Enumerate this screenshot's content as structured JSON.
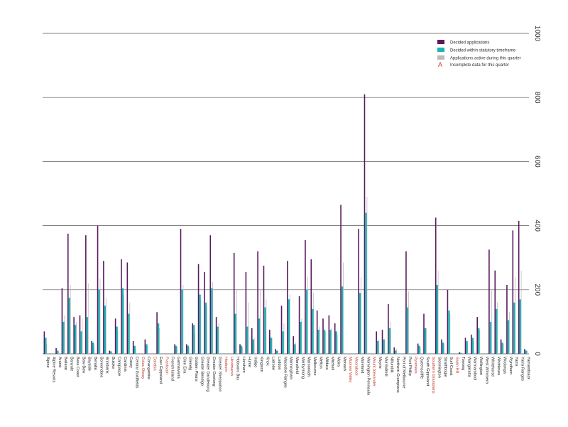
{
  "chart_data": {
    "type": "bar",
    "title": "",
    "xlabel": "",
    "ylabel": "",
    "ylim": [
      0,
      1000
    ],
    "yticks": [
      0,
      200,
      400,
      600,
      800,
      1000
    ],
    "grid": true,
    "legend_position": "top-right",
    "legend": {
      "decided": "Decided applications",
      "within": "Decided within statutory timeframe",
      "active": "Applications active during this quarter",
      "incomplete_marker": "A",
      "incomplete": "Incomplete data for this quarter"
    },
    "colors": {
      "decided": "#5a1a5e",
      "within": "#1fb3b3",
      "active": "#bbbbbb",
      "incomplete": "#c0392b",
      "grid": "#555555",
      "background": "#ffffff"
    },
    "categories": [
      "Alpine",
      "Alpine Resorts",
      "Ararat",
      "Ballarat",
      "Banyule",
      "Bass Coast",
      "Baw Baw",
      "Bayside",
      "Benalla",
      "Boroondara",
      "Brimbank",
      "Buloke",
      "Campaspe",
      "Cardinia",
      "Casey",
      "Central Goldfields",
      "Colac Otway",
      "Corangamite",
      "Darebin",
      "East Gippsland",
      "Frankston",
      "French Island",
      "Gannawarra",
      "Glen Eira",
      "Glenelg",
      "Golden Plains",
      "Greater Bendigo",
      "Greater Dandenong",
      "Greater Geelong",
      "Greater Shepparton",
      "Hepburn",
      "Hindmarsh",
      "Hobsons Bay",
      "Horsham",
      "Hume",
      "Indigo",
      "Kingston",
      "Knox",
      "Latrobe",
      "Loddon",
      "Macedon Ranges",
      "Manningham",
      "Mansfield",
      "Maribyrnong",
      "Maroondah",
      "Melbourne",
      "Melton",
      "Mildura",
      "Mitchell",
      "Moira",
      "Monash",
      "Moonee Valley",
      "Moorabool",
      "Moreland",
      "Mornington Peninsula",
      "Mount Alexander",
      "Moyne",
      "Murrindindi",
      "Nillumbik",
      "Northern Grampians",
      "Port of Melbourne",
      "Port Phillip",
      "Pyrenees",
      "Queenscliffe",
      "South Gippsland",
      "Southern Grampians",
      "Stonnington",
      "Strathbogie",
      "Surf Coast",
      "Swan Hill",
      "Towong",
      "Wangaratta",
      "Warrnambool",
      "Wellington",
      "West Wimmera",
      "Whitehorse",
      "Whittlesea",
      "Wodonga",
      "Wyndham",
      "Yarra",
      "Yarra Ranges",
      "Yarriambiack"
    ],
    "incomplete": [
      false,
      false,
      false,
      false,
      false,
      false,
      false,
      false,
      false,
      false,
      false,
      false,
      false,
      false,
      false,
      false,
      true,
      false,
      true,
      false,
      true,
      false,
      false,
      false,
      false,
      false,
      false,
      false,
      false,
      false,
      true,
      true,
      false,
      false,
      false,
      false,
      false,
      false,
      false,
      false,
      false,
      false,
      false,
      false,
      false,
      false,
      false,
      false,
      false,
      false,
      false,
      true,
      true,
      false,
      false,
      true,
      false,
      false,
      false,
      false,
      false,
      false,
      true,
      false,
      false,
      true,
      false,
      false,
      false,
      true,
      false,
      false,
      false,
      false,
      false,
      false,
      false,
      false,
      false,
      false,
      false,
      false
    ],
    "series": [
      {
        "name": "Decided applications",
        "values": [
          70,
          0,
          18,
          205,
          375,
          115,
          120,
          370,
          40,
          400,
          290,
          10,
          110,
          295,
          285,
          40,
          0,
          45,
          0,
          130,
          0,
          0,
          30,
          390,
          30,
          95,
          280,
          255,
          370,
          115,
          0,
          0,
          315,
          30,
          255,
          80,
          320,
          275,
          75,
          15,
          150,
          290,
          55,
          180,
          355,
          295,
          135,
          110,
          120,
          95,
          465,
          0,
          0,
          390,
          810,
          0,
          70,
          75,
          155,
          20,
          0,
          320,
          0,
          32,
          125,
          0,
          425,
          45,
          200,
          0,
          5,
          50,
          60,
          115,
          0,
          325,
          260,
          45,
          215,
          385,
          415,
          15
        ]
      },
      {
        "name": "Decided within statutory timeframe",
        "values": [
          50,
          0,
          10,
          100,
          175,
          90,
          70,
          115,
          35,
          200,
          150,
          8,
          85,
          205,
          125,
          25,
          0,
          30,
          0,
          95,
          0,
          0,
          25,
          200,
          25,
          90,
          185,
          160,
          205,
          85,
          0,
          0,
          125,
          25,
          85,
          45,
          110,
          145,
          50,
          10,
          70,
          170,
          30,
          100,
          200,
          140,
          75,
          75,
          75,
          70,
          210,
          0,
          0,
          190,
          440,
          0,
          40,
          45,
          80,
          10,
          0,
          145,
          0,
          25,
          80,
          0,
          215,
          35,
          135,
          0,
          3,
          40,
          50,
          80,
          0,
          100,
          140,
          35,
          105,
          160,
          170,
          10
        ]
      },
      {
        "name": "Applications active during this quarter",
        "values": [
          30,
          0,
          8,
          120,
          215,
          100,
          110,
          220,
          25,
          235,
          175,
          5,
          75,
          185,
          160,
          20,
          0,
          25,
          0,
          80,
          0,
          0,
          20,
          215,
          20,
          65,
          170,
          150,
          225,
          95,
          0,
          0,
          200,
          20,
          160,
          50,
          200,
          170,
          50,
          10,
          95,
          185,
          35,
          110,
          240,
          190,
          85,
          70,
          80,
          60,
          285,
          0,
          0,
          240,
          490,
          0,
          45,
          45,
          100,
          15,
          0,
          195,
          0,
          20,
          80,
          0,
          260,
          30,
          125,
          0,
          3,
          35,
          40,
          75,
          0,
          200,
          160,
          30,
          130,
          240,
          260,
          10
        ]
      }
    ]
  }
}
